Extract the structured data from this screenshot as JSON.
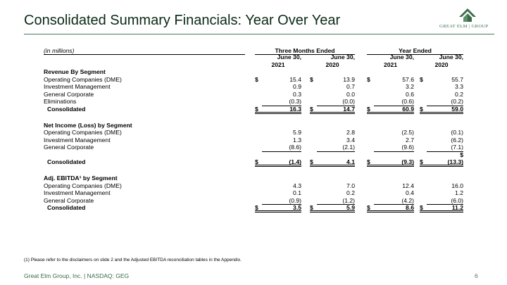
{
  "title": "Consolidated Summary Financials: Year Over Year",
  "logo": {
    "left": "GREAT ELM",
    "right": "GROUP"
  },
  "unit_label": "(in millions)",
  "groups": [
    "Three Months Ended",
    "Year Ended"
  ],
  "columns": [
    {
      "line1": "June 30,",
      "line2": "2021"
    },
    {
      "line1": "June 30,",
      "line2": "2020"
    },
    {
      "line1": "June 30,",
      "line2": "2021"
    },
    {
      "line1": "June 30,",
      "line2": "2020"
    }
  ],
  "currency_symbol": "$",
  "sections": [
    {
      "heading": "Revenue By Segment",
      "rows": [
        {
          "label": "Operating Companies (DME)",
          "dollar": true,
          "values": [
            "15.4",
            "13.9",
            "57.6",
            "55.7"
          ]
        },
        {
          "label": "Investment Management",
          "values": [
            "0.9",
            "0.7",
            "3.2",
            "3.3"
          ]
        },
        {
          "label": "General Corporate",
          "values": [
            "0.3",
            "0.0",
            "0.6",
            "0.2"
          ]
        },
        {
          "label": "Eliminations",
          "values": [
            "(0.3)",
            "(0.0)",
            "(0.6)",
            "(0.2)"
          ],
          "underline": true
        },
        {
          "label": "Consolidated",
          "total": true,
          "dollar": true,
          "values": [
            "16.3",
            "14.7",
            "60.9",
            "59.0"
          ]
        }
      ]
    },
    {
      "heading": "Net Income (Loss) by Segment",
      "rows": [
        {
          "label": "Operating Companies (DME)",
          "values": [
            "5.9",
            "2.8",
            "(2.5)",
            "(0.1)"
          ]
        },
        {
          "label": "Investment Management",
          "values": [
            "1.3",
            "3.4",
            "2.7",
            "(6.2)"
          ]
        },
        {
          "label": "General Corporate",
          "values": [
            "(8.6)",
            "(2.1)",
            "(9.6)",
            "(7.1)"
          ],
          "underline": true
        },
        {
          "label": "Consolidated",
          "total": true,
          "dollar": true,
          "tall": true,
          "last_dollar_above": true,
          "values": [
            "(1.4)",
            "4.1",
            "(9.3)",
            "(13.3)"
          ]
        }
      ]
    },
    {
      "heading": "Adj. EBITDA¹ by Segment",
      "rows": [
        {
          "label": "Operating Companies (DME)",
          "values": [
            "4.3",
            "7.0",
            "12.4",
            "16.0"
          ]
        },
        {
          "label": "Investment Management",
          "values": [
            "0.1",
            "0.2",
            "0.4",
            "1.2"
          ]
        },
        {
          "label": "General Corporate",
          "values": [
            "(0.9)",
            "(1.2)",
            "(4.2)",
            "(6.0)"
          ],
          "underline": true
        },
        {
          "label": "Consolidated",
          "total": true,
          "dollar": true,
          "values": [
            "3.5",
            "5.9",
            "8.6",
            "11.2"
          ]
        }
      ]
    }
  ],
  "footnote": "(1)  Please refer to the disclaimers on slide 2 and the Adjusted EBITDA reconciliation tables in the Appendix.",
  "footer": "Great Elm Group, Inc. | NASDAQ: GEG",
  "page_number": "6",
  "colors": {
    "title": "#0b2a16",
    "brand_green": "#3a6b46"
  }
}
